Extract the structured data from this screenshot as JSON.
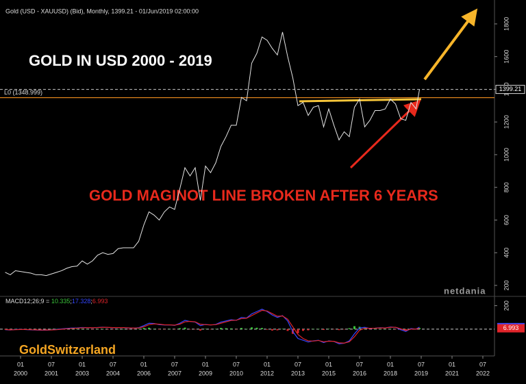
{
  "chart_data": [
    {
      "type": "line",
      "title": "Gold (USD - XAUUSD) (Bid), Monthly, 1399.21 - 01/Jun/2019 02:00:00",
      "annotations": [
        "GOLD IN USD 2000 - 2019",
        "GOLD MAGINOT LINE BROKEN AFTER 6 YEARS",
        "GoldSwitzerland"
      ],
      "logo": "netdania",
      "x": [
        "1999-04",
        "1999-07",
        "1999-10",
        "2000-01",
        "2000-04",
        "2000-07",
        "2000-10",
        "2001-01",
        "2001-04",
        "2001-07",
        "2001-10",
        "2002-01",
        "2002-04",
        "2002-07",
        "2002-10",
        "2003-01",
        "2003-04",
        "2003-07",
        "2003-10",
        "2004-01",
        "2004-04",
        "2004-07",
        "2004-10",
        "2005-01",
        "2005-04",
        "2005-07",
        "2005-10",
        "2006-01",
        "2006-04",
        "2006-07",
        "2006-10",
        "2007-01",
        "2007-04",
        "2007-07",
        "2007-10",
        "2008-01",
        "2008-04",
        "2008-07",
        "2008-10",
        "2009-01",
        "2009-04",
        "2009-07",
        "2009-10",
        "2010-01",
        "2010-04",
        "2010-07",
        "2010-10",
        "2011-01",
        "2011-04",
        "2011-07",
        "2011-10",
        "2012-01",
        "2012-04",
        "2012-07",
        "2012-10",
        "2013-01",
        "2013-04",
        "2013-07",
        "2013-10",
        "2014-01",
        "2014-04",
        "2014-07",
        "2014-10",
        "2015-01",
        "2015-04",
        "2015-07",
        "2015-10",
        "2016-01",
        "2016-04",
        "2016-07",
        "2016-10",
        "2017-01",
        "2017-04",
        "2017-07",
        "2017-10",
        "2018-01",
        "2018-04",
        "2018-07",
        "2018-10",
        "2019-01",
        "2019-04",
        "2019-06"
      ],
      "values": [
        280,
        265,
        290,
        285,
        280,
        275,
        265,
        265,
        260,
        270,
        280,
        290,
        305,
        315,
        318,
        350,
        330,
        350,
        385,
        400,
        390,
        395,
        425,
        430,
        430,
        430,
        470,
        570,
        650,
        630,
        600,
        650,
        680,
        665,
        790,
        920,
        870,
        920,
        720,
        930,
        890,
        950,
        1050,
        1110,
        1180,
        1180,
        1350,
        1330,
        1560,
        1620,
        1720,
        1700,
        1650,
        1610,
        1750,
        1600,
        1470,
        1300,
        1320,
        1240,
        1290,
        1300,
        1170,
        1280,
        1180,
        1090,
        1140,
        1110,
        1290,
        1340,
        1170,
        1210,
        1270,
        1270,
        1280,
        1340,
        1310,
        1220,
        1210,
        1320,
        1280,
        1399.21
      ],
      "color": "#e6e6e6",
      "xlim": [
        "1999-03",
        "2023-01"
      ],
      "ylim": [
        137,
        1896
      ],
      "yticks": [
        200,
        400,
        600,
        800,
        1000,
        1200,
        1400,
        1600,
        1800
      ],
      "last_price": 1399.21,
      "levels": [
        {
          "label": "L0 (1348.999)",
          "value": 1348.999,
          "color": "#e0841c"
        }
      ]
    },
    {
      "type": "macd",
      "title": "MACD12;26;9 =",
      "separator": ";",
      "x": [
        "1999-04",
        "1999-07",
        "1999-10",
        "2000-01",
        "2000-04",
        "2000-07",
        "2000-10",
        "2001-01",
        "2001-04",
        "2001-07",
        "2001-10",
        "2002-01",
        "2002-04",
        "2002-07",
        "2002-10",
        "2003-01",
        "2003-04",
        "2003-07",
        "2003-10",
        "2004-01",
        "2004-04",
        "2004-07",
        "2004-10",
        "2005-01",
        "2005-04",
        "2005-07",
        "2005-10",
        "2006-01",
        "2006-04",
        "2006-07",
        "2006-10",
        "2007-01",
        "2007-04",
        "2007-07",
        "2007-10",
        "2008-01",
        "2008-04",
        "2008-07",
        "2008-10",
        "2009-01",
        "2009-04",
        "2009-07",
        "2009-10",
        "2010-01",
        "2010-04",
        "2010-07",
        "2010-10",
        "2011-01",
        "2011-04",
        "2011-07",
        "2011-10",
        "2012-01",
        "2012-04",
        "2012-07",
        "2012-10",
        "2013-01",
        "2013-04",
        "2013-07",
        "2013-10",
        "2014-01",
        "2014-04",
        "2014-07",
        "2014-10",
        "2015-01",
        "2015-04",
        "2015-07",
        "2015-10",
        "2016-01",
        "2016-04",
        "2016-07",
        "2016-10",
        "2017-01",
        "2017-04",
        "2017-07",
        "2017-10",
        "2018-01",
        "2018-04",
        "2018-07",
        "2018-10",
        "2019-01",
        "2019-04",
        "2019-06"
      ],
      "series": [
        {
          "style": "bars",
          "color": "#3ac43a",
          "negative_color": "#e0242a",
          "last": 10.335,
          "values": [
            -2,
            -2,
            2,
            1,
            -1,
            -1,
            -2,
            -1,
            -1,
            1,
            2,
            3,
            3,
            3,
            2,
            3,
            0,
            -1,
            1,
            2,
            -1,
            -1,
            0,
            0,
            -1,
            -1,
            2,
            10,
            12,
            3,
            -4,
            -2,
            0,
            -2,
            8,
            13,
            -1,
            -2,
            -12,
            2,
            -1,
            2,
            10,
            8,
            6,
            -1,
            10,
            2,
            15,
            12,
            10,
            -5,
            -12,
            -10,
            3,
            -15,
            -40,
            -35,
            -15,
            -10,
            2,
            2,
            -7,
            3,
            -1,
            -8,
            -1,
            8,
            25,
            20,
            7,
            -2,
            0,
            2,
            0,
            3,
            -1,
            -8,
            -8,
            5,
            -1,
            10.335
          ]
        },
        {
          "style": "line",
          "color": "#3346ff",
          "last": 17.328,
          "values": [
            -5,
            -8,
            -3,
            -2,
            -4,
            -6,
            -8,
            -9,
            -9,
            -6,
            -3,
            2,
            6,
            9,
            10,
            14,
            12,
            11,
            14,
            17,
            14,
            12,
            13,
            13,
            10,
            8,
            12,
            30,
            50,
            48,
            38,
            35,
            36,
            32,
            50,
            75,
            65,
            60,
            30,
            40,
            35,
            40,
            60,
            70,
            80,
            75,
            100,
            95,
            130,
            150,
            170,
            150,
            120,
            100,
            115,
            70,
            -20,
            -80,
            -95,
            -110,
            -100,
            -95,
            -115,
            -100,
            -105,
            -125,
            -120,
            -100,
            -40,
            10,
            15,
            5,
            8,
            12,
            10,
            18,
            15,
            -5,
            -20,
            5,
            0,
            17.328
          ]
        },
        {
          "style": "line",
          "color": "#e0242a",
          "last": 6.993,
          "values": [
            -3,
            -6,
            -5,
            -3,
            -3,
            -5,
            -6,
            -8,
            -8,
            -7,
            -5,
            -1,
            3,
            6,
            8,
            11,
            12,
            12,
            13,
            15,
            15,
            13,
            13,
            13,
            11,
            9,
            10,
            20,
            38,
            45,
            42,
            37,
            36,
            34,
            42,
            62,
            66,
            62,
            42,
            38,
            36,
            38,
            50,
            62,
            74,
            76,
            90,
            93,
            115,
            138,
            160,
            155,
            132,
            110,
            112,
            85,
            20,
            -45,
            -80,
            -100,
            -102,
            -97,
            -108,
            -103,
            -104,
            -117,
            -119,
            -108,
            -65,
            -10,
            8,
            7,
            8,
            10,
            10,
            15,
            16,
            3,
            -12,
            0,
            1,
            6.993
          ]
        }
      ],
      "xlim": [
        "1999-03",
        "2023-01"
      ],
      "ylim": [
        -217,
        250
      ],
      "yticks": [
        200
      ],
      "zero_line": true,
      "xticks": [
        {
          "value": "2000-01",
          "label": [
            "01",
            "2000"
          ]
        },
        {
          "value": "2001-07",
          "label": [
            "07",
            "2001"
          ]
        },
        {
          "value": "2003-01",
          "label": [
            "01",
            "2003"
          ]
        },
        {
          "value": "2004-07",
          "label": [
            "07",
            "2004"
          ]
        },
        {
          "value": "2006-01",
          "label": [
            "01",
            "2006"
          ]
        },
        {
          "value": "2007-07",
          "label": [
            "07",
            "2007"
          ]
        },
        {
          "value": "2009-01",
          "label": [
            "01",
            "2009"
          ]
        },
        {
          "value": "2010-07",
          "label": [
            "07",
            "2010"
          ]
        },
        {
          "value": "2012-01",
          "label": [
            "01",
            "2012"
          ]
        },
        {
          "value": "2013-07",
          "label": [
            "07",
            "2013"
          ]
        },
        {
          "value": "2015-01",
          "label": [
            "01",
            "2015"
          ]
        },
        {
          "value": "2016-07",
          "label": [
            "07",
            "2016"
          ]
        },
        {
          "value": "2018-01",
          "label": [
            "01",
            "2018"
          ]
        },
        {
          "value": "2019-07",
          "label": [
            "07",
            "2019"
          ]
        },
        {
          "value": "2021-01",
          "label": [
            "01",
            "2021"
          ]
        },
        {
          "value": "2022-07",
          "label": [
            "07",
            "2022"
          ]
        }
      ]
    }
  ]
}
